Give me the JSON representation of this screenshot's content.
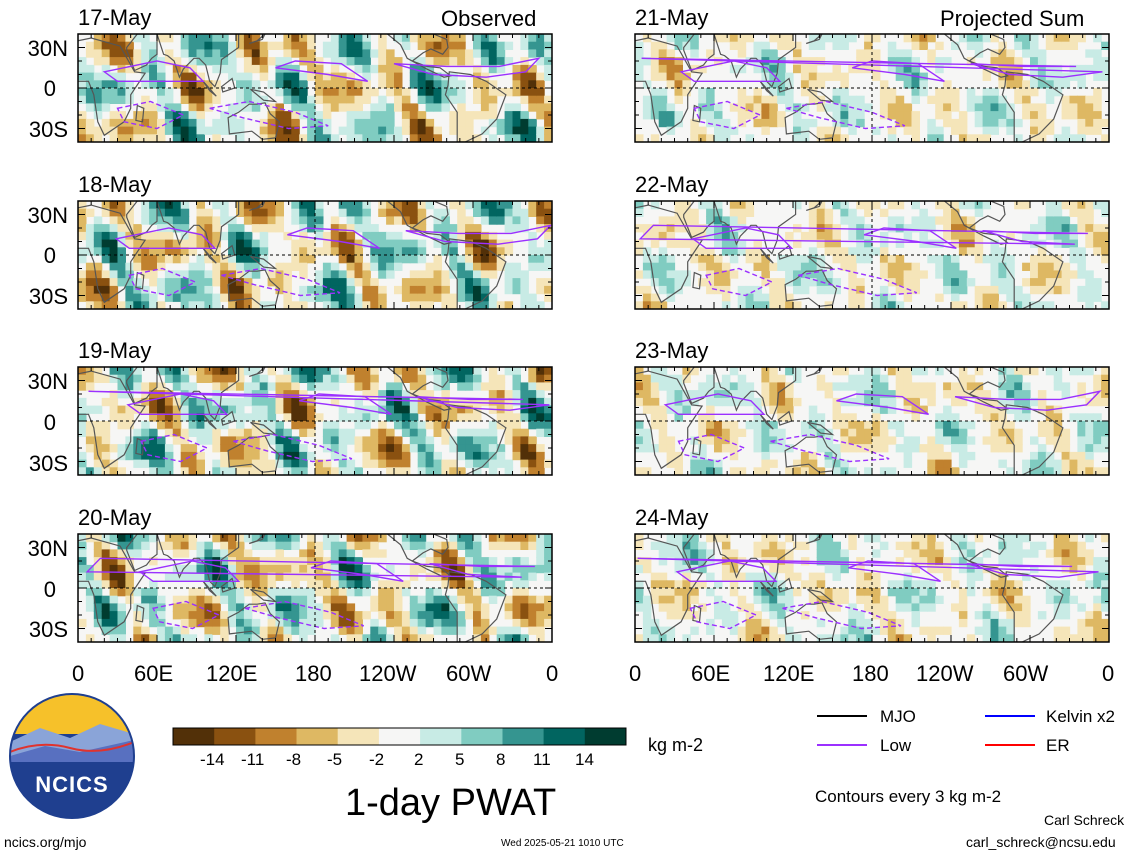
{
  "chart_data": {
    "type": "heatmap",
    "title": "1-day PWAT",
    "columns": [
      {
        "header": "Observed",
        "dates": [
          "17-May",
          "18-May",
          "19-May",
          "20-May"
        ]
      },
      {
        "header": "Projected Sum",
        "dates": [
          "21-May",
          "22-May",
          "23-May",
          "24-May"
        ]
      }
    ],
    "y_ticks": [
      "30N",
      "0",
      "30S"
    ],
    "y_values": [
      30,
      0,
      -30
    ],
    "ylim": [
      -40,
      40
    ],
    "x_ticks": [
      "0",
      "60E",
      "120E",
      "180",
      "120W",
      "60W",
      "0"
    ],
    "x_values": [
      0,
      60,
      120,
      180,
      240,
      300,
      360
    ],
    "xlim": [
      0,
      360
    ],
    "colorbar": {
      "ticks": [
        "-14",
        "-11",
        "-8",
        "-5",
        "-2",
        "2",
        "5",
        "8",
        "11",
        "14"
      ],
      "colors": [
        "#523008",
        "#8a5110",
        "#c0812e",
        "#deb863",
        "#f5e5b9",
        "#f6f6f5",
        "#c8ebe5",
        "#80ccc1",
        "#359590",
        "#016560",
        "#003c30"
      ],
      "units": "kg m-2"
    },
    "legend": [
      {
        "name": "MJO",
        "color": "#000000"
      },
      {
        "name": "Kelvin x2",
        "color": "#0000ff"
      },
      {
        "name": "Low",
        "color": "#9b30ff"
      },
      {
        "name": "ER",
        "color": "#ff0000"
      }
    ],
    "contour_note": "Contours every 3 kg m-2"
  },
  "footer": {
    "logo_text": "NCICS",
    "site": "ncics.org/mjo",
    "timestamp": "Wed 2025-05-21 1010 UTC",
    "author": "Carl Schreck",
    "email": "carl_schreck@ncsu.edu"
  }
}
